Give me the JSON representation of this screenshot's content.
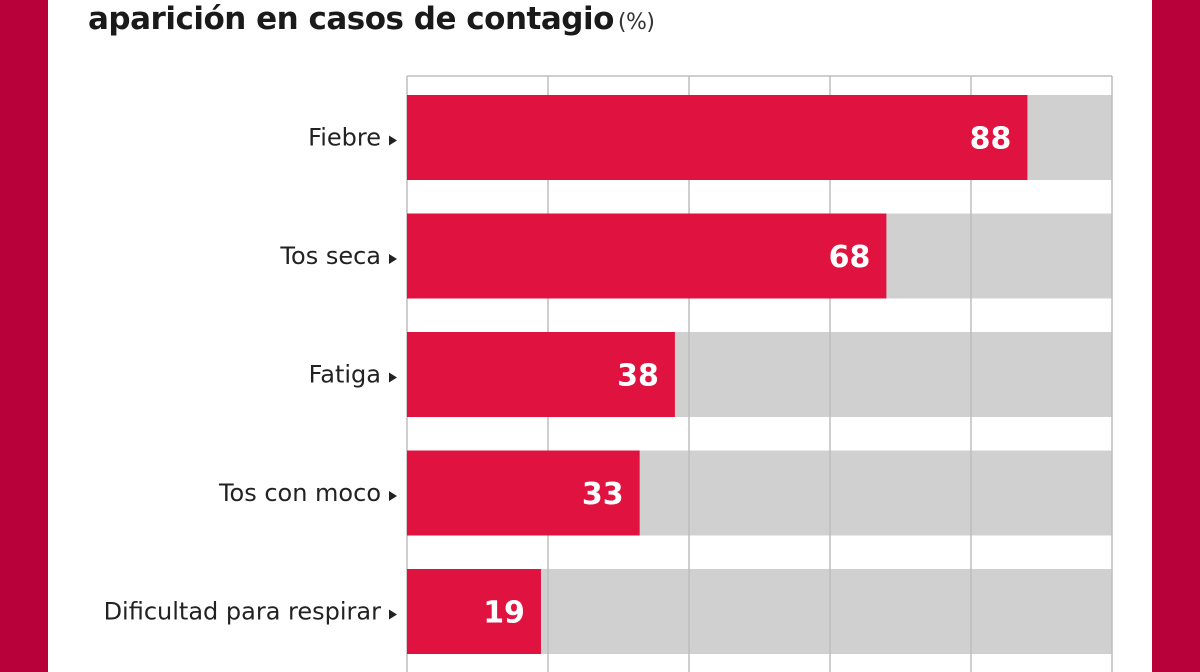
{
  "chart_data": {
    "type": "bar",
    "orientation": "horizontal",
    "title": "aparición en casos de contagio",
    "unit": "(%)",
    "categories": [
      "Fiebre",
      "Tos seca",
      "Fatiga",
      "Tos con moco",
      "Dificultad para respirar"
    ],
    "values": [
      88,
      68,
      38,
      33,
      19
    ],
    "xlim": [
      0,
      100
    ],
    "grid": true,
    "legend": "none",
    "colors": {
      "bar": "#e0123f",
      "track": "#d0d0d0",
      "frame": "#b8003a",
      "gridline": "#bdbdbd"
    }
  }
}
